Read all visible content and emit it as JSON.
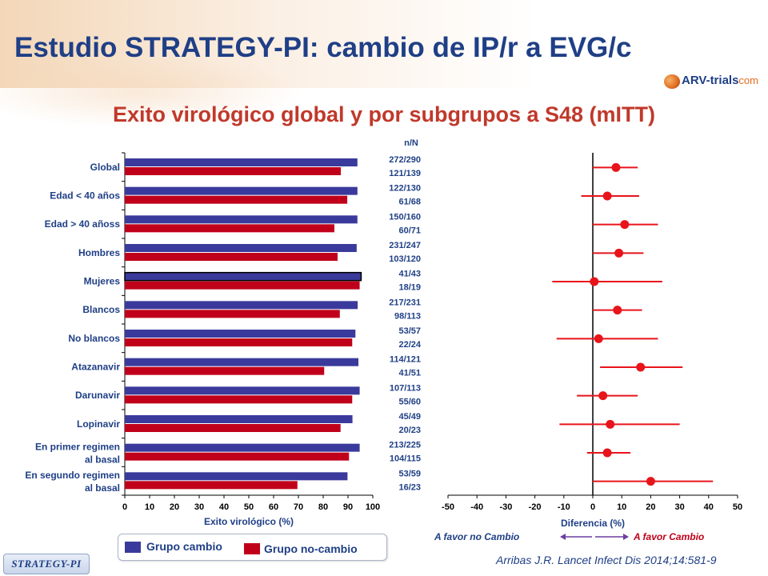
{
  "header": {
    "title": "Estudio STRATEGY-PI: cambio de IP/r a EVG/c",
    "subtitle": "Exito virológico global y por subgrupos a S48 (mITT)",
    "logo_text_main": "ARV-trials",
    "logo_text_suffix": "com"
  },
  "footer": {
    "badge": "STRATEGY-PI",
    "citation": "Arribas J.R. Lancet Infect Dis 2014;14:581-9"
  },
  "legend": {
    "cambio": "Grupo cambio",
    "no_cambio": "Grupo no-cambio"
  },
  "nn_header": "n/N",
  "colors": {
    "title": "#1f3f86",
    "subtitle": "#c0392b",
    "cambio": "#3a3a9c",
    "no_cambio": "#c0001a",
    "forest": "#e8141b"
  },
  "chart_data": [
    {
      "type": "bar",
      "orientation": "horizontal",
      "xlabel": "Exito virológico (%)",
      "xlim": [
        0,
        100
      ],
      "xticks": [
        0,
        10,
        20,
        30,
        40,
        50,
        60,
        70,
        80,
        90,
        100
      ],
      "categories": [
        [
          "Global"
        ],
        [
          "Edad < 40 años"
        ],
        [
          "Edad > 40 añoss"
        ],
        [
          "Hombres"
        ],
        [
          "Mujeres"
        ],
        [
          "Blancos"
        ],
        [
          "No blancos"
        ],
        [
          "Atazanavir"
        ],
        [
          "Darunavir"
        ],
        [
          "Lopinavir"
        ],
        [
          "En primer regimen",
          "al basal"
        ],
        [
          "En segundo regimen",
          "al basal"
        ]
      ],
      "series": [
        {
          "name": "Grupo cambio",
          "values": [
            93.8,
            93.8,
            93.8,
            93.5,
            95.3,
            93.9,
            93.0,
            94.2,
            94.7,
            91.8,
            94.7,
            89.8
          ]
        },
        {
          "name": "Grupo no-cambio",
          "values": [
            87.1,
            89.7,
            84.5,
            85.8,
            94.7,
            86.7,
            91.7,
            80.4,
            91.7,
            87.0,
            90.4,
            69.6
          ]
        }
      ],
      "counts": [
        {
          "cambio": "272/290",
          "no_cambio": "121/139"
        },
        {
          "cambio": "122/130",
          "no_cambio": "61/68"
        },
        {
          "cambio": "150/160",
          "no_cambio": "60/71"
        },
        {
          "cambio": "231/247",
          "no_cambio": "103/120"
        },
        {
          "cambio": "41/43",
          "no_cambio": "18/19"
        },
        {
          "cambio": "217/231",
          "no_cambio": "98/113"
        },
        {
          "cambio": "53/57",
          "no_cambio": "22/24"
        },
        {
          "cambio": "114/121",
          "no_cambio": "41/51"
        },
        {
          "cambio": "107/113",
          "no_cambio": "55/60"
        },
        {
          "cambio": "45/49",
          "no_cambio": "20/23"
        },
        {
          "cambio": "213/225",
          "no_cambio": "104/115"
        },
        {
          "cambio": "53/59",
          "no_cambio": "16/23"
        }
      ]
    },
    {
      "type": "scatter",
      "subtype": "forest",
      "xlabel": "Diferencia (%)",
      "xlim": [
        -50,
        50
      ],
      "xticks": [
        -50,
        -40,
        -30,
        -20,
        -10,
        0,
        10,
        20,
        30,
        40,
        50
      ],
      "favor_left": "A favor no Cambio",
      "favor_right": "A favor Cambio",
      "points": [
        {
          "estimate": 8,
          "lower": 0,
          "upper": 15.5
        },
        {
          "estimate": 5,
          "lower": -4,
          "upper": 16
        },
        {
          "estimate": 11,
          "lower": 0,
          "upper": 22.5
        },
        {
          "estimate": 9,
          "lower": 0,
          "upper": 17.5
        },
        {
          "estimate": 0.5,
          "lower": -14,
          "upper": 24
        },
        {
          "estimate": 8.5,
          "lower": 0,
          "upper": 17
        },
        {
          "estimate": 2,
          "lower": -12.5,
          "upper": 22.5
        },
        {
          "estimate": 16.5,
          "lower": 2.5,
          "upper": 31
        },
        {
          "estimate": 3.5,
          "lower": -5.5,
          "upper": 15.5
        },
        {
          "estimate": 6,
          "lower": -11.5,
          "upper": 30
        },
        {
          "estimate": 5,
          "lower": -2,
          "upper": 13
        },
        {
          "estimate": 20,
          "lower": 0,
          "upper": 41.5
        }
      ]
    }
  ]
}
